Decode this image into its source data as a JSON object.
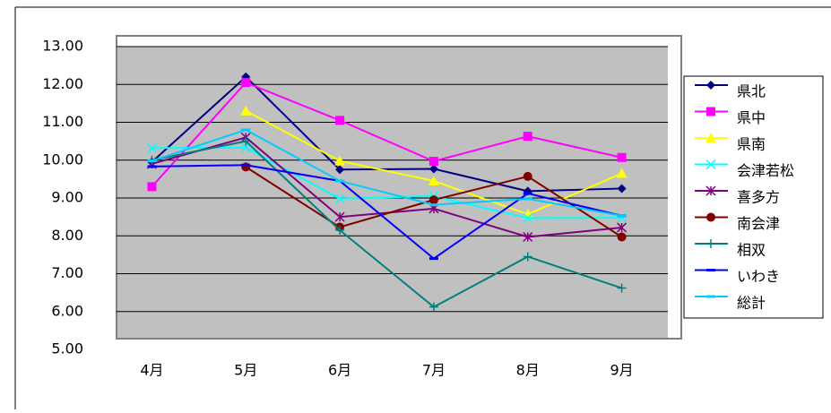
{
  "chart_data": {
    "type": "line",
    "categories": [
      "4月",
      "5月",
      "6月",
      "7月",
      "8月",
      "9月"
    ],
    "ylim": [
      5,
      13
    ],
    "yticks": [
      {
        "value": 5,
        "label": "5.00"
      },
      {
        "value": 6,
        "label": "6.00"
      },
      {
        "value": 7,
        "label": "7.00"
      },
      {
        "value": 8,
        "label": "8.00"
      },
      {
        "value": 9,
        "label": "9.00"
      },
      {
        "value": 10,
        "label": "10.00"
      },
      {
        "value": 11,
        "label": "11.00"
      },
      {
        "value": 12,
        "label": "12.00"
      },
      {
        "value": 13,
        "label": "13.00"
      }
    ],
    "grid": true,
    "legend": "right",
    "series": [
      {
        "name": "県北",
        "color": "#000080",
        "marker": "diamond",
        "values": [
          9.95,
          12.2,
          9.75,
          9.77,
          9.18,
          9.25
        ]
      },
      {
        "name": "県中",
        "color": "#ff00ff",
        "marker": "square",
        "values": [
          9.3,
          12.05,
          11.05,
          9.97,
          10.63,
          10.07
        ]
      },
      {
        "name": "県南",
        "color": "#ffff00",
        "marker": "triangle",
        "values": [
          null,
          11.3,
          9.98,
          9.45,
          8.57,
          9.65
        ]
      },
      {
        "name": "会津若松",
        "color": "#00ffff",
        "marker": "x",
        "values": [
          10.32,
          10.33,
          8.98,
          9.05,
          8.47,
          8.48
        ]
      },
      {
        "name": "喜多方",
        "color": "#800080",
        "marker": "star",
        "values": [
          9.9,
          10.6,
          8.5,
          8.72,
          7.97,
          8.22
        ]
      },
      {
        "name": "南会津",
        "color": "#800000",
        "marker": "circle",
        "values": [
          null,
          9.82,
          8.23,
          8.95,
          9.57,
          7.97
        ]
      },
      {
        "name": "相双",
        "color": "#008080",
        "marker": "plus",
        "values": [
          10.0,
          10.5,
          8.15,
          6.12,
          7.45,
          6.62
        ]
      },
      {
        "name": "いわき",
        "color": "#0000ff",
        "marker": "dash",
        "values": [
          9.83,
          9.87,
          9.45,
          7.4,
          9.12,
          8.53
        ]
      },
      {
        "name": "総計",
        "color": "#00ccff",
        "marker": "dash",
        "values": [
          9.98,
          10.8,
          9.45,
          8.82,
          8.98,
          8.53
        ]
      }
    ]
  }
}
